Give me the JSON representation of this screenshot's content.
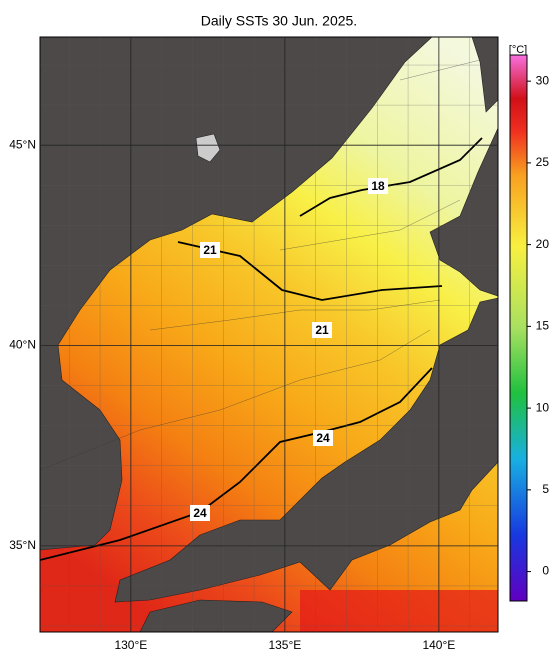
{
  "title": "Daily SSTs 30 Jun. 2025.",
  "lon_range": [
    127.05,
    141.92
  ],
  "lat_range": [
    32.85,
    47.7
  ],
  "lon_ticks": [
    {
      "value": 130,
      "label": "130°E"
    },
    {
      "value": 135,
      "label": "135°E"
    },
    {
      "value": 140,
      "label": "140°E"
    }
  ],
  "lat_ticks": [
    {
      "value": 45,
      "label": "45°N"
    },
    {
      "value": 40,
      "label": "40°N"
    },
    {
      "value": 35,
      "label": "35°N"
    }
  ],
  "colorbar": {
    "unit": "[°C]",
    "range": [
      -1.8,
      31.6
    ],
    "ticks": [
      0,
      5,
      10,
      15,
      20,
      25,
      30
    ]
  },
  "contour_labels": [
    18,
    21,
    21,
    24,
    24
  ]
}
